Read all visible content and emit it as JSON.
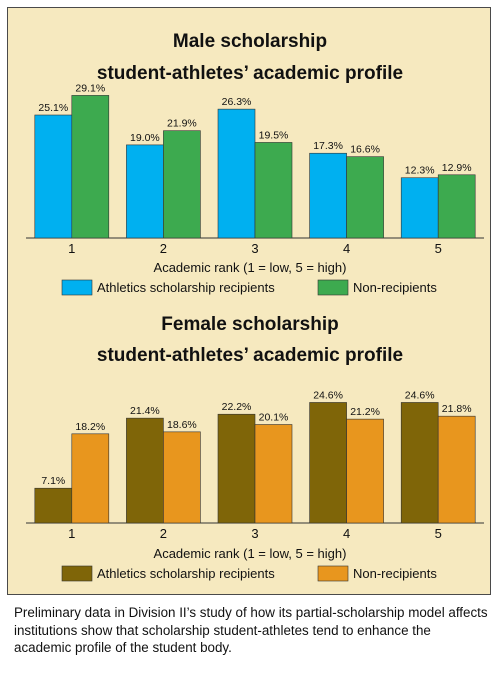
{
  "colors": {
    "male_recipients": "#00b0f0",
    "male_non": "#3daa4f",
    "female_recipients": "#7f6508",
    "female_non": "#e8961e",
    "panel_bg": "#f6e9bf"
  },
  "caption": "Preliminary data in Division II’s study of how its partial-scholarship model affects institutions show that scholarship student-athletes tend to enhance the academic profile of the student body.",
  "chart_data": [
    {
      "type": "bar",
      "title_line1": "Male scholarship",
      "title_line2": "student-athletes’ academic profile",
      "xlabel": "Academic rank (1 = low, 5 = high)",
      "categories": [
        "1",
        "2",
        "3",
        "4",
        "5"
      ],
      "series": [
        {
          "name": "Athletics scholarship recipients",
          "values": [
            25.1,
            19.0,
            26.3,
            17.3,
            12.3
          ],
          "labels": [
            "25.1%",
            "19.0%",
            "26.3%",
            "17.3%",
            "12.3%"
          ]
        },
        {
          "name": "Non-recipients",
          "values": [
            29.1,
            21.9,
            19.5,
            16.6,
            12.9
          ],
          "labels": [
            "29.1%",
            "21.9%",
            "19.5%",
            "16.6%",
            "12.9%"
          ]
        }
      ],
      "ylim": [
        0,
        30
      ],
      "grid": false,
      "legend": "bottom"
    },
    {
      "type": "bar",
      "title_line1": "Female scholarship",
      "title_line2": "student-athletes’ academic profile",
      "xlabel": "Academic rank (1 = low, 5 = high)",
      "categories": [
        "1",
        "2",
        "3",
        "4",
        "5"
      ],
      "series": [
        {
          "name": "Athletics scholarship recipients",
          "values": [
            7.1,
            21.4,
            22.2,
            24.6,
            24.6
          ],
          "labels": [
            "7.1%",
            "21.4%",
            "22.2%",
            "24.6%",
            "24.6%"
          ]
        },
        {
          "name": "Non-recipients",
          "values": [
            18.2,
            18.6,
            20.1,
            21.2,
            21.8
          ],
          "labels": [
            "18.2%",
            "18.6%",
            "20.1%",
            "21.2%",
            "21.8%"
          ]
        }
      ],
      "ylim": [
        0,
        30
      ],
      "grid": false,
      "legend": "bottom"
    }
  ]
}
